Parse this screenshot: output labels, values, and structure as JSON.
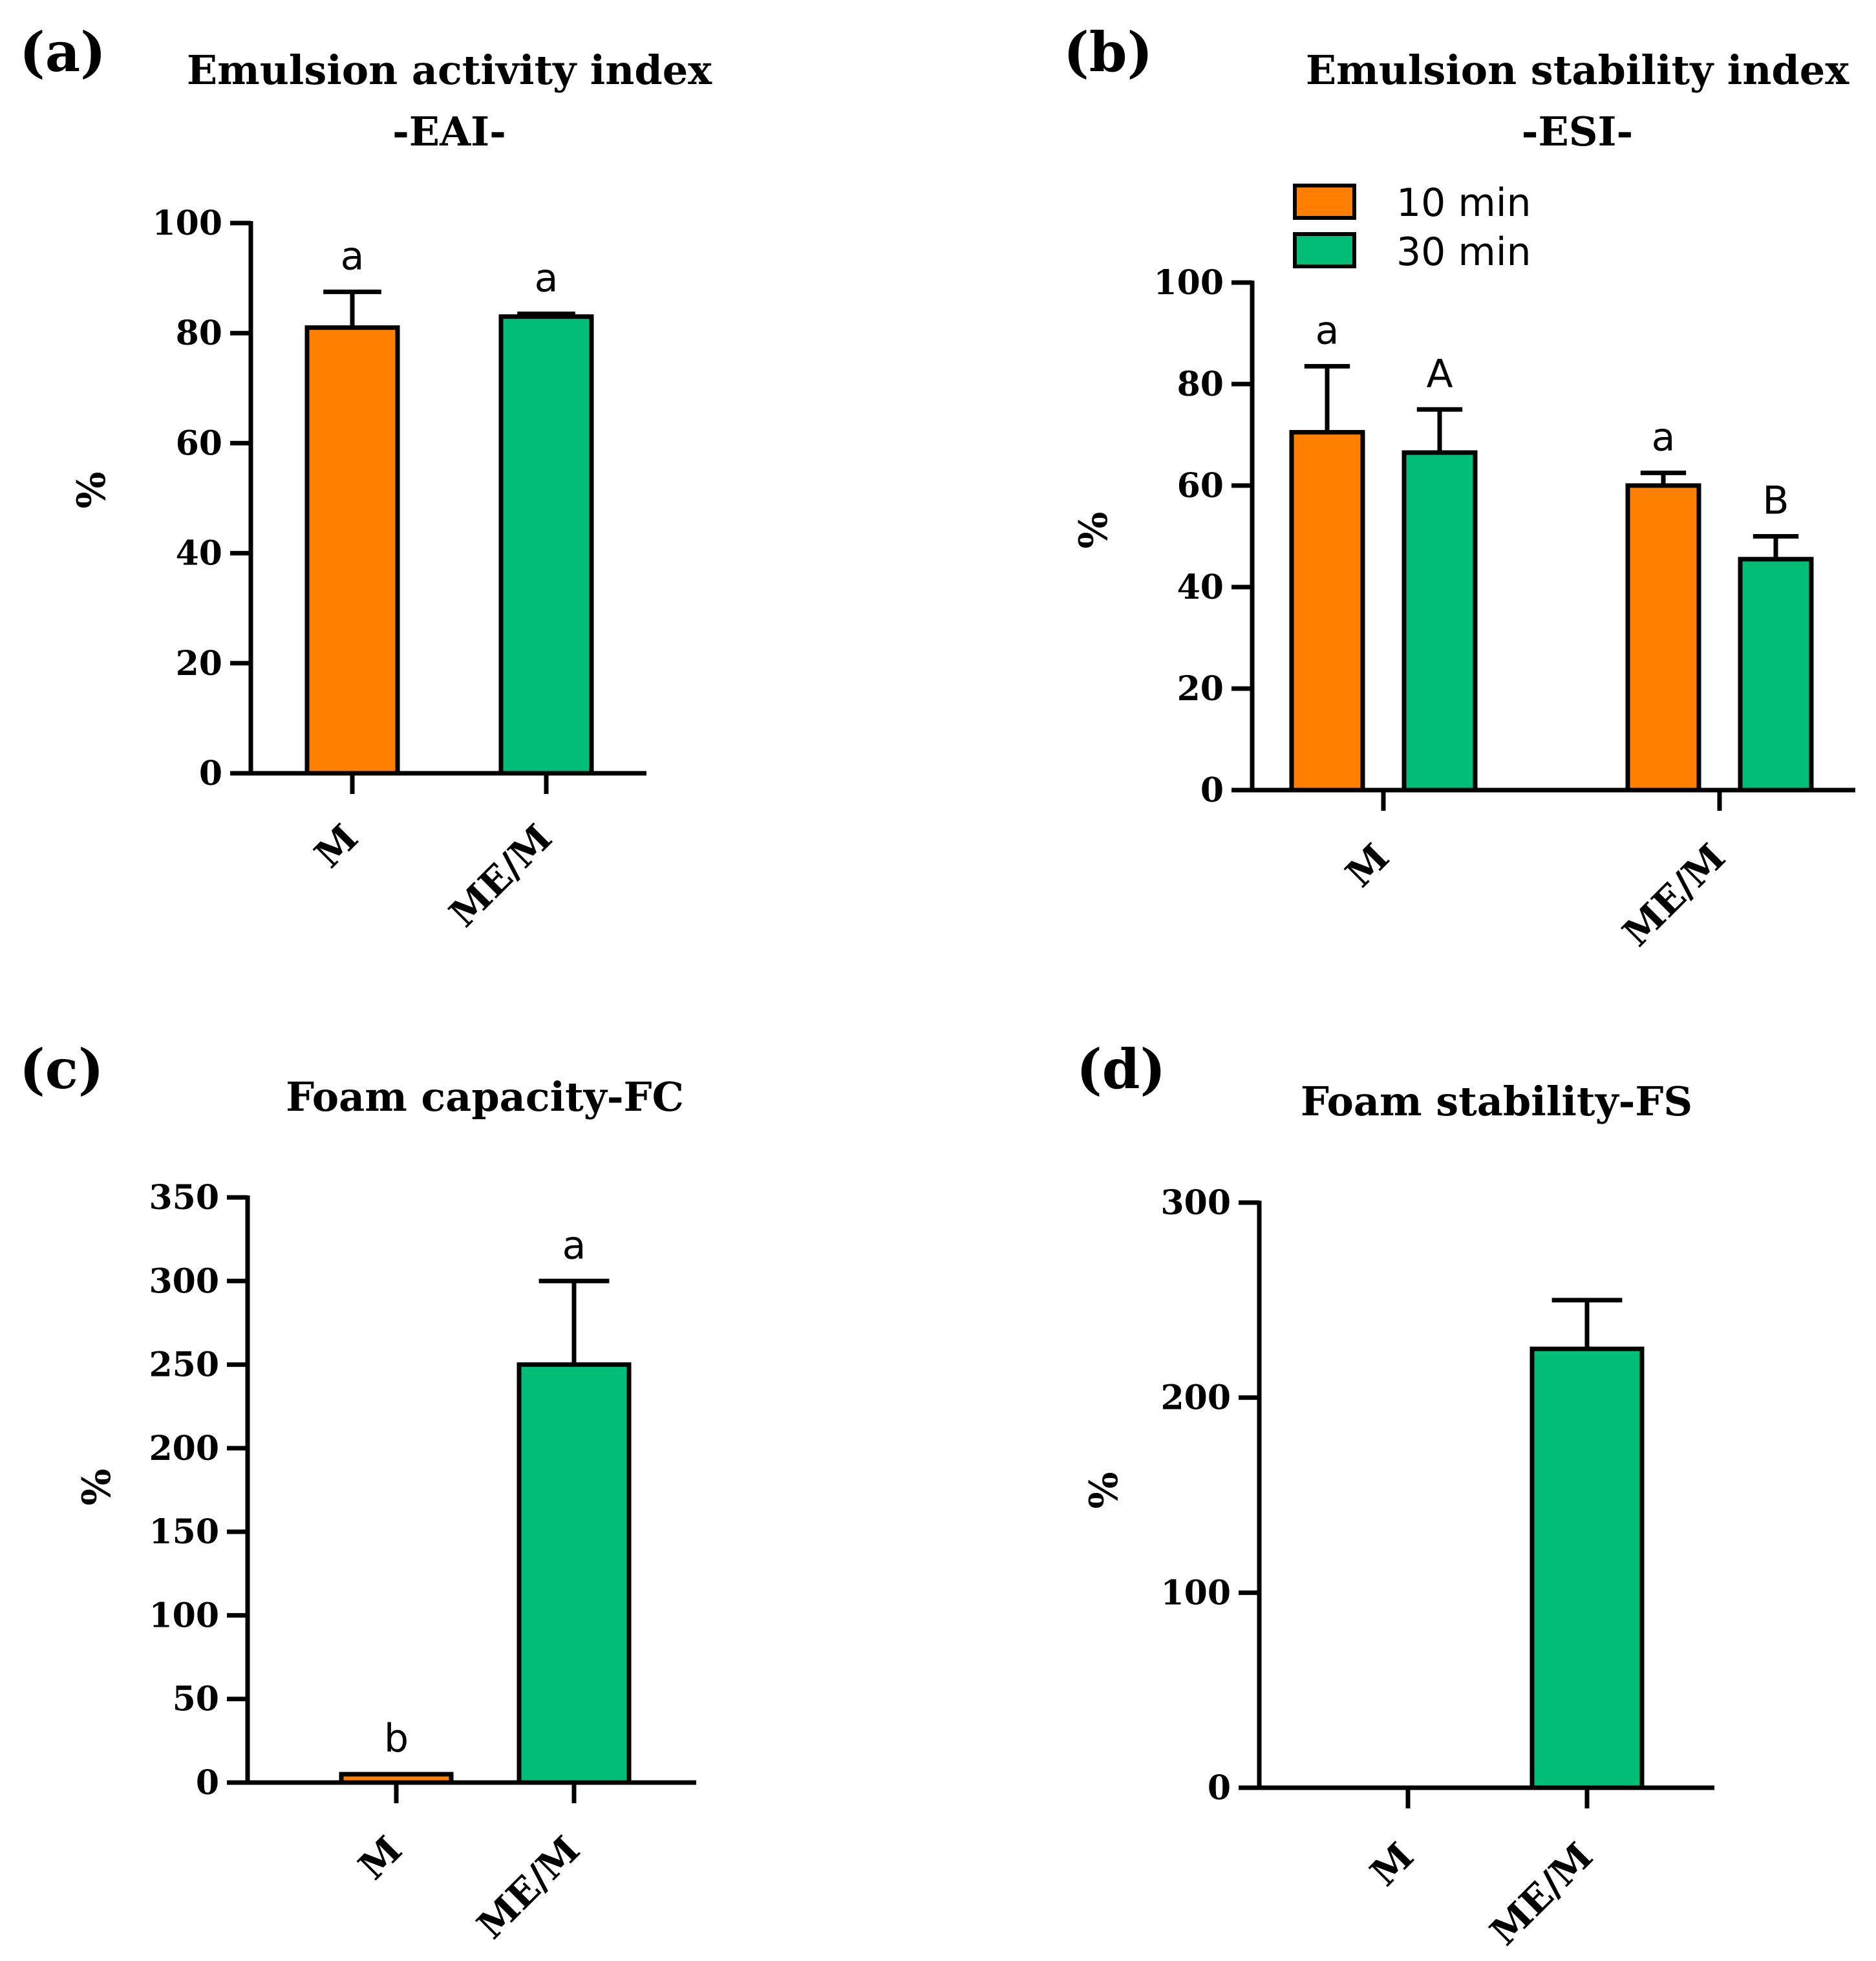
{
  "colors": {
    "orange": "#ff8000",
    "green": "#00be78",
    "axis": "#000000"
  },
  "chart_data": [
    {
      "type": "bar",
      "panel_label": "(a)",
      "title": [
        "Emulsion activity index",
        "-EAI-"
      ],
      "xlabel": "",
      "ylabel": "%",
      "ylim": [
        0,
        100
      ],
      "yticks": [
        0,
        20,
        40,
        60,
        80,
        100
      ],
      "categories": [
        "M",
        "ME/M"
      ],
      "series": [
        {
          "name": "",
          "values": [
            81,
            83
          ],
          "errors": [
            6.5,
            0.5
          ],
          "colors": [
            "orange",
            "green"
          ],
          "letters": [
            "a",
            "a"
          ]
        }
      ]
    },
    {
      "type": "bar",
      "panel_label": "(b)",
      "title": [
        "Emulsion stability index",
        "-ESI-"
      ],
      "xlabel": "",
      "ylabel": "%",
      "ylim": [
        0,
        100
      ],
      "yticks": [
        0,
        20,
        40,
        60,
        80,
        100
      ],
      "categories": [
        "M",
        "ME/M"
      ],
      "legend": {
        "placement": "top-left",
        "entries": [
          {
            "label": "10 min",
            "color": "orange"
          },
          {
            "label": "30 min",
            "color": "green"
          }
        ]
      },
      "series": [
        {
          "name": "10 min",
          "values": [
            70.5,
            60
          ],
          "errors": [
            13,
            2.5
          ],
          "color": "orange",
          "letters": [
            "a",
            "a"
          ]
        },
        {
          "name": "30 min",
          "values": [
            66.5,
            45.5
          ],
          "errors": [
            8.5,
            4.5
          ],
          "color": "green",
          "letters": [
            "A",
            "B"
          ]
        }
      ]
    },
    {
      "type": "bar",
      "panel_label": "(c)",
      "title": [
        "Foam capacity-FC"
      ],
      "xlabel": "",
      "ylabel": "%",
      "ylim": [
        0,
        350
      ],
      "yticks": [
        0,
        50,
        100,
        150,
        200,
        250,
        300,
        350
      ],
      "categories": [
        "M",
        "ME/M"
      ],
      "series": [
        {
          "name": "",
          "values": [
            5,
            250
          ],
          "errors": [
            0,
            50
          ],
          "colors": [
            "orange",
            "green"
          ],
          "letters": [
            "b",
            "a"
          ]
        }
      ]
    },
    {
      "type": "bar",
      "panel_label": "(d)",
      "title": [
        "Foam stability-FS"
      ],
      "xlabel": "",
      "ylabel": "%",
      "ylim": [
        0,
        300
      ],
      "yticks": [
        0,
        100,
        200,
        300
      ],
      "categories": [
        "M",
        "ME/M"
      ],
      "series": [
        {
          "name": "",
          "values": [
            0,
            225
          ],
          "errors": [
            0,
            25
          ],
          "colors": [
            "orange",
            "green"
          ],
          "letters": [
            "",
            ""
          ]
        }
      ]
    }
  ]
}
